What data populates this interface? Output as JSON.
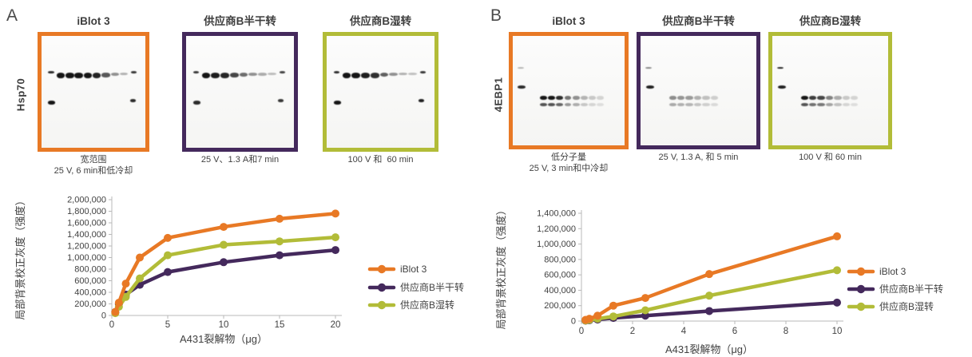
{
  "colors": {
    "orange": "#E87925",
    "purple": "#44295C",
    "green": "#B2BC38",
    "axis": "#b9b9b9",
    "text": "#414141",
    "band": "#161616"
  },
  "panels": [
    {
      "label": "A",
      "protein": "Hsp70",
      "blots": [
        {
          "title": "iBlot 3",
          "border": "orange",
          "caption_line1": "宽范围",
          "caption_line2": "25 V, 6 min和低冷却",
          "pattern": "hsp70",
          "lane_intensities": [
            1,
            1,
            1,
            1,
            0.92,
            0.62,
            0.3,
            0.12
          ],
          "marker_opacities": [
            0.9,
            0.85,
            1,
            0.9
          ]
        },
        {
          "title": "供应商B半干转",
          "border": "purple",
          "caption_line1": "25 V、1.3 A和7 min",
          "pattern": "hsp70",
          "lane_intensities": [
            1,
            0.95,
            0.9,
            0.72,
            0.5,
            0.3,
            0.15,
            0.06
          ],
          "marker_opacities": [
            0.85,
            0.8,
            0.9,
            0.85
          ]
        },
        {
          "title": "供应商B湿转",
          "border": "green",
          "caption_line1": "100 V 和  60 min",
          "pattern": "hsp70",
          "lane_intensities": [
            1,
            1,
            0.95,
            0.85,
            0.58,
            0.3,
            0.12,
            0.04
          ],
          "marker_opacities": [
            0.9,
            0.85,
            1,
            0.95
          ]
        }
      ]
    },
    {
      "label": "B",
      "protein": "4EBP1",
      "blots": [
        {
          "title": "iBlot 3",
          "border": "orange",
          "caption_line1": "低分子量",
          "caption_line2": "25 V, 3 min和中冷却",
          "pattern": "4ebp1",
          "lane_intensities": [
            1,
            1,
            0.88,
            0.52,
            0.38,
            0.2,
            0.1,
            0.04
          ],
          "marker_opacities": [
            0.3,
            0.9
          ]
        },
        {
          "title": "供应商B半干转",
          "border": "purple",
          "caption_line1": "25 V, 1.3 A, 和 5 min",
          "pattern": "4ebp1",
          "lane_intensities": [
            0.4,
            0.36,
            0.33,
            0.22,
            0.14,
            0.07,
            0,
            0
          ],
          "marker_opacities": [
            0.5,
            0.95
          ]
        },
        {
          "title": "供应商B湿转",
          "border": "green",
          "caption_line1": "100 V 和 60 min",
          "pattern": "4ebp1",
          "lane_intensities": [
            1,
            0.8,
            0.75,
            0.45,
            0.24,
            0.1,
            0.04,
            0
          ],
          "marker_opacities": [
            0.95,
            0.95
          ]
        }
      ]
    }
  ],
  "chart_data": [
    {
      "type": "line",
      "title": "",
      "xlabel": "A431裂解物（μg）",
      "ylabel": "局部背景校正灰度（强度）",
      "xlim": [
        0,
        20
      ],
      "ylim": [
        0,
        2000000
      ],
      "xticks": [
        0,
        5,
        10,
        15,
        20
      ],
      "ytick_step": 200000,
      "grid": false,
      "legend_position": "right",
      "x": [
        0.31,
        0.63,
        1.25,
        2.5,
        5,
        10,
        15,
        20
      ],
      "series": [
        {
          "name": "iBlot 3",
          "color": "orange",
          "values": [
            60000,
            220000,
            550000,
            1000000,
            1340000,
            1530000,
            1670000,
            1760000
          ]
        },
        {
          "name": "供应商B半干转",
          "color": "purple",
          "values": [
            60000,
            200000,
            360000,
            530000,
            750000,
            920000,
            1040000,
            1130000
          ]
        },
        {
          "name": "供应商B湿转",
          "color": "green",
          "values": [
            40000,
            150000,
            320000,
            640000,
            1040000,
            1220000,
            1280000,
            1350000
          ]
        }
      ]
    },
    {
      "type": "line",
      "title": "",
      "xlabel": "A431裂解物（μg）",
      "ylabel": "局部背景校正灰度（强度）",
      "xlim": [
        0,
        10
      ],
      "ylim": [
        0,
        1400000
      ],
      "xticks": [
        0,
        2,
        4,
        6,
        8,
        10
      ],
      "ytick_step": 200000,
      "grid": false,
      "legend_position": "right",
      "x": [
        0.16,
        0.31,
        0.63,
        1.25,
        2.5,
        5,
        10
      ],
      "series": [
        {
          "name": "iBlot 3",
          "color": "orange",
          "values": [
            15000,
            30000,
            70000,
            200000,
            300000,
            610000,
            1100000
          ]
        },
        {
          "name": "供应商B半干转",
          "color": "purple",
          "values": [
            5000,
            10000,
            20000,
            40000,
            70000,
            130000,
            240000
          ]
        },
        {
          "name": "供应商B湿转",
          "color": "green",
          "values": [
            8000,
            15000,
            30000,
            60000,
            140000,
            330000,
            660000
          ]
        }
      ]
    }
  ]
}
